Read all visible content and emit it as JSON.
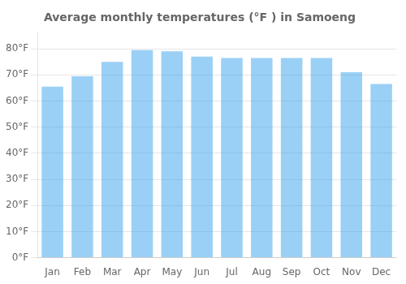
{
  "chart_data": {
    "type": "bar",
    "title": "Average monthly temperatures (°F ) in Samoeng",
    "categories": [
      "Jan",
      "Feb",
      "Mar",
      "Apr",
      "May",
      "Jun",
      "Jul",
      "Aug",
      "Sep",
      "Oct",
      "Nov",
      "Dec"
    ],
    "values": [
      65.5,
      69.5,
      75,
      79.5,
      79,
      77,
      76.5,
      76.5,
      76.5,
      76.5,
      71,
      66.5
    ],
    "ylim": [
      0,
      86
    ],
    "yticks": [
      {
        "value": 0,
        "label": "0°F"
      },
      {
        "value": 10,
        "label": "10°F"
      },
      {
        "value": 20,
        "label": "20°F"
      },
      {
        "value": 30,
        "label": "30°F"
      },
      {
        "value": 40,
        "label": "40°F"
      },
      {
        "value": 50,
        "label": "50°F"
      },
      {
        "value": 60,
        "label": "60°F"
      },
      {
        "value": 70,
        "label": "70°F"
      },
      {
        "value": 80,
        "label": "80°F"
      }
    ],
    "grid": true
  }
}
